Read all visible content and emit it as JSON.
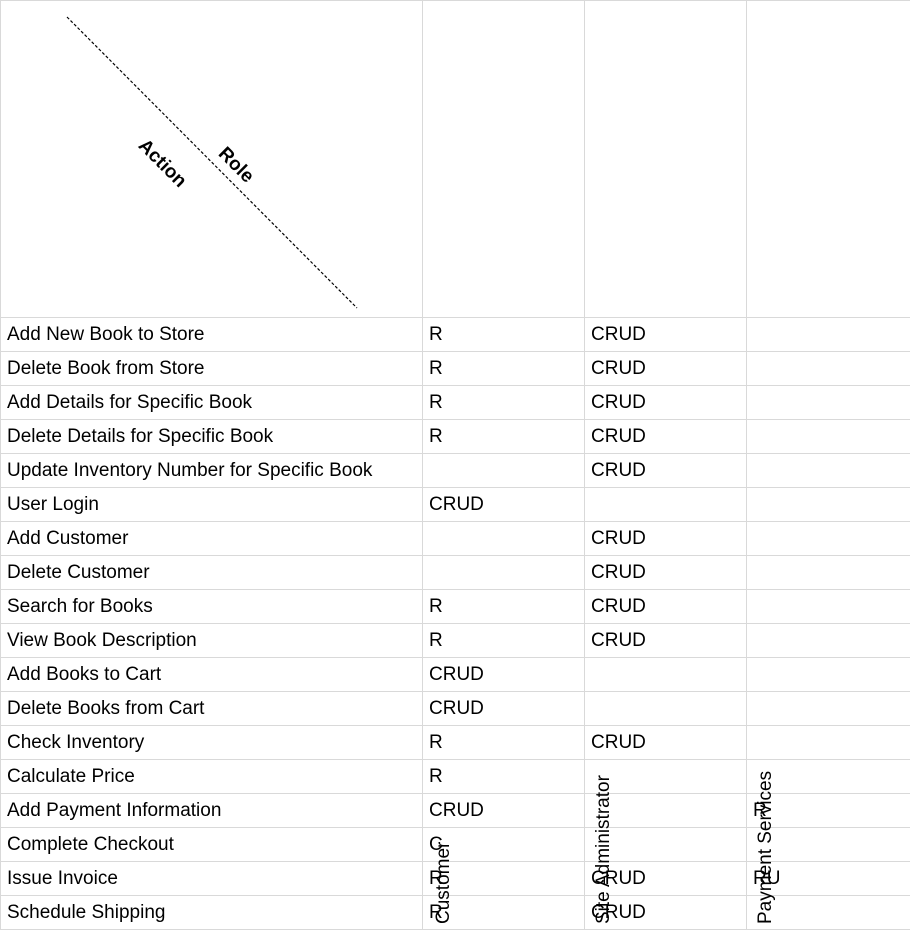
{
  "header": {
    "role_label": "Role",
    "action_label": "Action",
    "columns": [
      "Customer",
      "Site Administrator",
      "Payment Services"
    ]
  },
  "rows": [
    {
      "action": "Add New Book to Store",
      "customer": "R",
      "admin": "CRUD",
      "payment": ""
    },
    {
      "action": "Delete Book from Store",
      "customer": "R",
      "admin": "CRUD",
      "payment": ""
    },
    {
      "action": "Add Details for Specific Book",
      "customer": "R",
      "admin": "CRUD",
      "payment": ""
    },
    {
      "action": "Delete Details for Specific Book",
      "customer": "R",
      "admin": "CRUD",
      "payment": ""
    },
    {
      "action": "Update Inventory Number for Specific Book",
      "customer": "",
      "admin": "CRUD",
      "payment": ""
    },
    {
      "action": "User Login",
      "customer": "CRUD",
      "admin": "",
      "payment": ""
    },
    {
      "action": "Add Customer",
      "customer": "",
      "admin": "CRUD",
      "payment": ""
    },
    {
      "action": "Delete Customer",
      "customer": "",
      "admin": "CRUD",
      "payment": ""
    },
    {
      "action": "Search for Books",
      "customer": "R",
      "admin": "CRUD",
      "payment": ""
    },
    {
      "action": "View Book Description",
      "customer": "R",
      "admin": "CRUD",
      "payment": ""
    },
    {
      "action": "Add Books to Cart",
      "customer": "CRUD",
      "admin": "",
      "payment": ""
    },
    {
      "action": "Delete Books from Cart",
      "customer": "CRUD",
      "admin": "",
      "payment": ""
    },
    {
      "action": "Check Inventory",
      "customer": "R",
      "admin": "CRUD",
      "payment": ""
    },
    {
      "action": "Calculate Price",
      "customer": "R",
      "admin": "",
      "payment": ""
    },
    {
      "action": "Add Payment Information",
      "customer": "CRUD",
      "admin": "",
      "payment": "R"
    },
    {
      "action": "Complete Checkout",
      "customer": "C",
      "admin": "",
      "payment": ""
    },
    {
      "action": "Issue Invoice",
      "customer": "R",
      "admin": "CRUD",
      "payment": "RU"
    },
    {
      "action": "Schedule Shipping",
      "customer": "R",
      "admin": "CRUD",
      "payment": ""
    }
  ]
}
